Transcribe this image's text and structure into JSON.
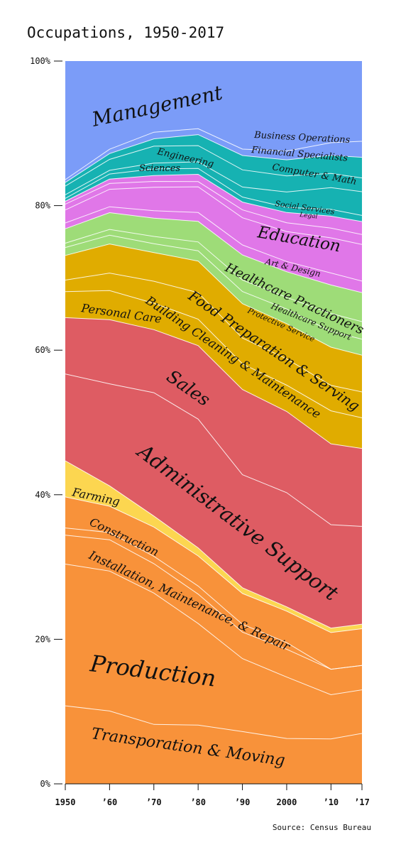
{
  "chart_data": {
    "type": "area",
    "stacked": true,
    "normalized": true,
    "title": "Occupations, 1950-2017",
    "source": "Source: Census Bureau",
    "x": [
      1950,
      1960,
      1970,
      1980,
      1990,
      2000,
      2010,
      2017
    ],
    "x_tick_labels": [
      "1950",
      "’60",
      "’70",
      "’80",
      "’90",
      "2000",
      "’10",
      "’17"
    ],
    "y_ticks": [
      0,
      20,
      40,
      60,
      80,
      100
    ],
    "y_tick_labels": [
      "0%",
      "20%",
      "40%",
      "60%",
      "80%",
      "100%"
    ],
    "ylim": [
      0,
      100
    ],
    "grid": false,
    "legend": "none",
    "series": [
      {
        "name": "Transporation & Moving",
        "color": "#f8923a",
        "values": [
          10.8,
          10.0,
          8.1,
          8.0,
          7.3,
          6.2,
          6.0,
          6.6
        ]
      },
      {
        "name": "Production",
        "color": "#f8923a",
        "values": [
          19.6,
          19.2,
          17.9,
          13.8,
          10.2,
          8.4,
          5.9,
          5.7
        ]
      },
      {
        "name": "Installation, Maintenance, & Repair",
        "color": "#f8923a",
        "values": [
          4.0,
          4.3,
          4.0,
          4.0,
          3.7,
          3.8,
          3.4,
          3.2
        ]
      },
      {
        "name": "Construction",
        "color": "#f8923a",
        "values": [
          1.0,
          1.0,
          1.0,
          1.1,
          1.1,
          0.9,
          0.0,
          0.0
        ]
      },
      {
        "name": "Construction",
        "color": "#f8923a",
        "values": [
          4.3,
          3.6,
          4.0,
          4.1,
          4.3,
          4.3,
          4.9,
          4.8
        ]
      },
      {
        "name": "Farming",
        "color": "#fcd650",
        "values": [
          5.0,
          2.8,
          1.5,
          1.1,
          0.8,
          0.6,
          0.6,
          0.6
        ]
      },
      {
        "name": "Administrative Support",
        "color": "#de5c63",
        "values": [
          12.0,
          14.0,
          16.8,
          17.5,
          15.8,
          15.6,
          13.8,
          12.8
        ]
      },
      {
        "name": "Sales",
        "color": "#de5c63",
        "values": [
          7.8,
          8.8,
          8.6,
          10.0,
          11.9,
          11.1,
          10.8,
          10.2
        ]
      },
      {
        "name": "Personal Care",
        "color": "#e0ac00",
        "values": [
          3.6,
          4.0,
          3.6,
          3.6,
          3.6,
          3.6,
          4.4,
          4.0
        ]
      },
      {
        "name": "Building Cleaning & Maintenance",
        "color": "#e0ac00",
        "values": [
          1.6,
          2.4,
          3.0,
          3.6,
          3.6,
          3.6,
          3.4,
          3.4
        ]
      },
      {
        "name": "Food Preparation & Serving",
        "color": "#e0ac00",
        "values": [
          3.4,
          4.0,
          3.9,
          4.3,
          4.8,
          4.8,
          5.1,
          4.8
        ]
      },
      {
        "name": "Protective Service",
        "color": "#9edc78",
        "values": [
          1.1,
          1.2,
          1.2,
          1.4,
          1.7,
          2.0,
          2.1,
          2.1
        ]
      },
      {
        "name": "Healthcare Support",
        "color": "#9edc78",
        "values": [
          0.6,
          0.8,
          1.0,
          1.2,
          1.6,
          1.6,
          2.4,
          2.3
        ]
      },
      {
        "name": "Healthcare Practioners",
        "color": "#9edc78",
        "values": [
          2.0,
          2.3,
          2.5,
          2.8,
          3.5,
          3.5,
          3.8,
          3.8
        ]
      },
      {
        "name": "Art & Design",
        "color": "#e077e8",
        "values": [
          0.8,
          0.8,
          1.0,
          1.2,
          1.4,
          1.4,
          1.6,
          1.5
        ]
      },
      {
        "name": "Education",
        "color": "#e077e8",
        "values": [
          1.8,
          2.4,
          3.2,
          3.5,
          3.8,
          4.1,
          4.7,
          4.8
        ]
      },
      {
        "name": "Legal",
        "color": "#e077e8",
        "values": [
          0.8,
          0.8,
          0.8,
          0.7,
          1.1,
          1.2,
          1.3,
          1.3
        ]
      },
      {
        "name": "Social Services",
        "color": "#e077e8",
        "values": [
          0.4,
          0.6,
          0.8,
          1.0,
          1.1,
          1.4,
          1.6,
          1.7
        ]
      },
      {
        "name": "Sciences",
        "color": "#16b2b2",
        "values": [
          0.4,
          0.7,
          0.9,
          0.8,
          0.7,
          0.7,
          0.9,
          0.8
        ]
      },
      {
        "name": "Computer & Math",
        "color": "#16b2b2",
        "values": [
          0.5,
          0.5,
          0.8,
          0.9,
          1.4,
          2.1,
          2.9,
          3.1
        ]
      },
      {
        "name": "Engineering",
        "color": "#16b2b2",
        "values": [
          1.2,
          1.5,
          2.3,
          2.2,
          2.4,
          2.2,
          1.9,
          1.8
        ]
      },
      {
        "name": "Financial Specialists",
        "color": "#16b2b2",
        "values": [
          0.5,
          0.8,
          1.0,
          1.5,
          2.0,
          2.2,
          2.4,
          2.7
        ]
      },
      {
        "name": "Business Operations",
        "color": "#7b9cf8",
        "values": [
          0.4,
          0.6,
          0.9,
          0.8,
          0.9,
          1.2,
          1.7,
          2.1
        ]
      },
      {
        "name": "Management",
        "color": "#7b9cf8",
        "values": [
          16.4,
          12.1,
          9.7,
          9.2,
          12.3,
          12.3,
          10.9,
          10.5
        ]
      }
    ],
    "labels": [
      {
        "text": "Management",
        "series": "Management"
      },
      {
        "text": "Business Operations",
        "series": "Business Operations"
      },
      {
        "text": "Financial Specialists",
        "series": "Financial Specialists"
      },
      {
        "text": "Engineering",
        "series": "Engineering"
      },
      {
        "text": "Computer & Math",
        "series": "Computer & Math"
      },
      {
        "text": "Sciences",
        "series": "Sciences"
      },
      {
        "text": "Social Services",
        "series": "Social Services"
      },
      {
        "text": "Legal",
        "series": "Legal"
      },
      {
        "text": "Education",
        "series": "Education"
      },
      {
        "text": "Art & Design",
        "series": "Art & Design"
      },
      {
        "text": "Healthcare Practioners",
        "series": "Healthcare Practioners"
      },
      {
        "text": "Healthcare Support",
        "series": "Healthcare Support"
      },
      {
        "text": "Protective Service",
        "series": "Protective Service"
      },
      {
        "text": "Food Preparation & Serving",
        "series": "Food Preparation & Serving"
      },
      {
        "text": "Building Cleaning & Maintenance",
        "series": "Building Cleaning & Maintenance"
      },
      {
        "text": "Personal Care",
        "series": "Personal Care"
      },
      {
        "text": "Sales",
        "series": "Sales"
      },
      {
        "text": "Administrative Support",
        "series": "Administrative Support"
      },
      {
        "text": "Farming",
        "series": "Farming"
      },
      {
        "text": "Construction",
        "series": "Construction"
      },
      {
        "text": "Installation, Maintenance, & Repair",
        "series": "Installation, Maintenance, & Repair"
      },
      {
        "text": "Production",
        "series": "Production"
      },
      {
        "text": "Transporation & Moving",
        "series": "Transporation & Moving"
      }
    ]
  }
}
